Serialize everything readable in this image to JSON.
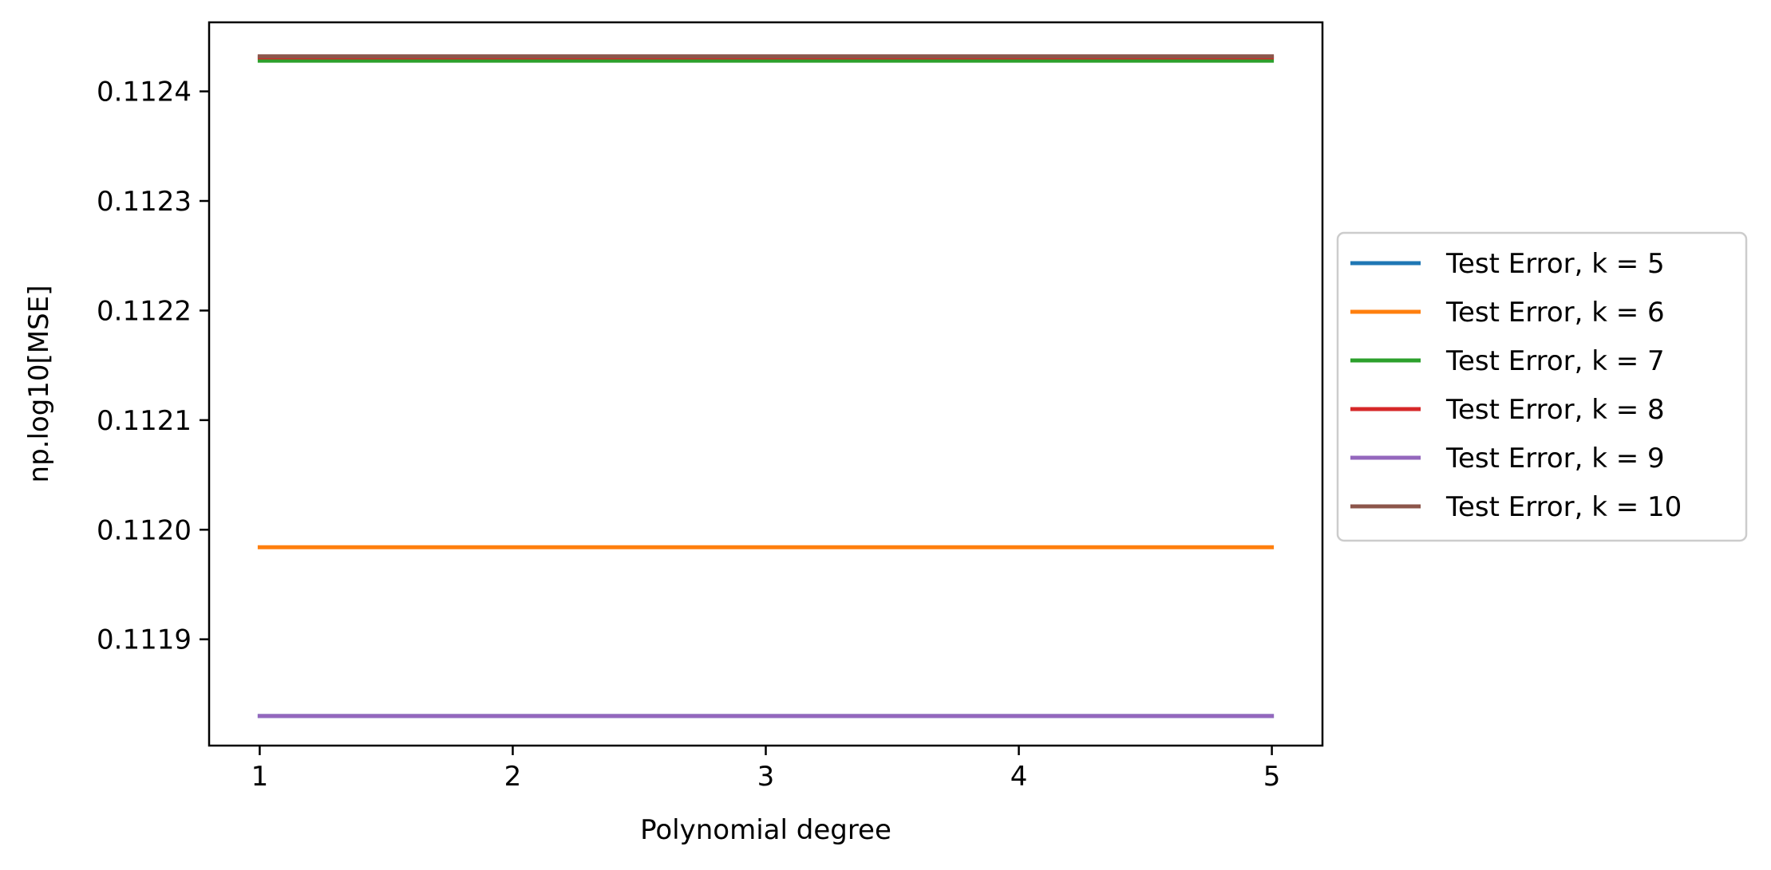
{
  "chart_data": {
    "type": "line",
    "xlabel": "Polynomial degree",
    "ylabel": "np.log10[MSE]",
    "x": [
      1,
      2,
      3,
      4,
      5
    ],
    "xticks": [
      "1",
      "2",
      "3",
      "4",
      "5"
    ],
    "xlim": [
      0.8,
      5.2
    ],
    "yticks": [
      "0.1119",
      "0.1120",
      "0.1121",
      "0.1122",
      "0.1123",
      "0.1124"
    ],
    "ylim": [
      0.111803,
      0.112463
    ],
    "legend_position": "center-left outside plot",
    "grid": false,
    "series": [
      {
        "name": "Test Error, k = 5",
        "color": "#1f77b4",
        "values": [
          0.11183,
          0.11183,
          0.11183,
          0.11183,
          0.11183
        ]
      },
      {
        "name": "Test Error, k = 6",
        "color": "#ff7f0e",
        "values": [
          0.111984,
          0.111984,
          0.111984,
          0.111984,
          0.111984
        ]
      },
      {
        "name": "Test Error, k = 7",
        "color": "#2ca02c",
        "values": [
          0.112428,
          0.112428,
          0.112428,
          0.112428,
          0.112428
        ]
      },
      {
        "name": "Test Error, k = 8",
        "color": "#d62728",
        "values": [
          0.112431,
          0.112431,
          0.112431,
          0.112431,
          0.112431
        ]
      },
      {
        "name": "Test Error, k = 9",
        "color": "#9467bd",
        "values": [
          0.11183,
          0.11183,
          0.11183,
          0.11183,
          0.11183
        ]
      },
      {
        "name": "Test Error, k = 10",
        "color": "#8c564b",
        "values": [
          0.112432,
          0.112432,
          0.112432,
          0.112432,
          0.112432
        ]
      }
    ]
  }
}
